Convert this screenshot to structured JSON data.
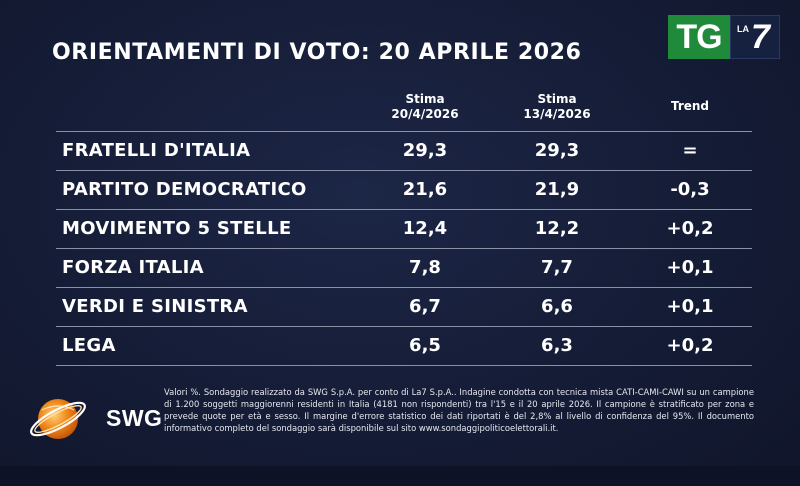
{
  "title": "ORIENTAMENTI DI VOTO: 20 APRILE 2026",
  "logo": {
    "tg": "TG",
    "la": "LA",
    "seven": "7",
    "colors": {
      "tg_green": "#1e8a3a",
      "la7_bg": "#16213f"
    }
  },
  "columns": {
    "estimate_current": {
      "line1": "Stima",
      "line2": "20/4/2026"
    },
    "estimate_previous": {
      "line1": "Stima",
      "line2": "13/4/2026"
    },
    "trend": "Trend"
  },
  "rows": [
    {
      "party": "FRATELLI D'ITALIA",
      "current": "29,3",
      "previous": "29,3",
      "trend": "="
    },
    {
      "party": "PARTITO DEMOCRATICO",
      "current": "21,6",
      "previous": "21,9",
      "trend": "-0,3"
    },
    {
      "party": "MOVIMENTO 5 STELLE",
      "current": "12,4",
      "previous": "12,2",
      "trend": "+0,2"
    },
    {
      "party": "FORZA ITALIA",
      "current": "7,8",
      "previous": "7,7",
      "trend": "+0,1"
    },
    {
      "party": "VERDI E SINISTRA",
      "current": "6,7",
      "previous": "6,6",
      "trend": "+0,1"
    },
    {
      "party": "LEGA",
      "current": "6,5",
      "previous": "6,3",
      "trend": "+0,2"
    }
  ],
  "source": {
    "logo_text": "SWG",
    "note": "Valori %. Sondaggio realizzato da SWG S.p.A. per conto di La7 S.p.A.. Indagine condotta con tecnica mista CATI-CAMI-CAWI su un campione di 1.200 soggetti maggiorenni residenti in Italia (4181 non rispondenti) tra l'15 e il 20 aprile 2026. Il campione è stratificato per zona e prevede quote per età e sesso. Il margine d'errore statistico dei dati riportati è del 2,8% al livello di confidenza del 95%. Il documento informativo completo del sondaggio sarà disponibile sul sito www.sondaggipoliticoelettorali.it."
  },
  "colors": {
    "background": "#141b33",
    "divider": "#8a90a6",
    "swg_orange": "#f08a1c"
  }
}
